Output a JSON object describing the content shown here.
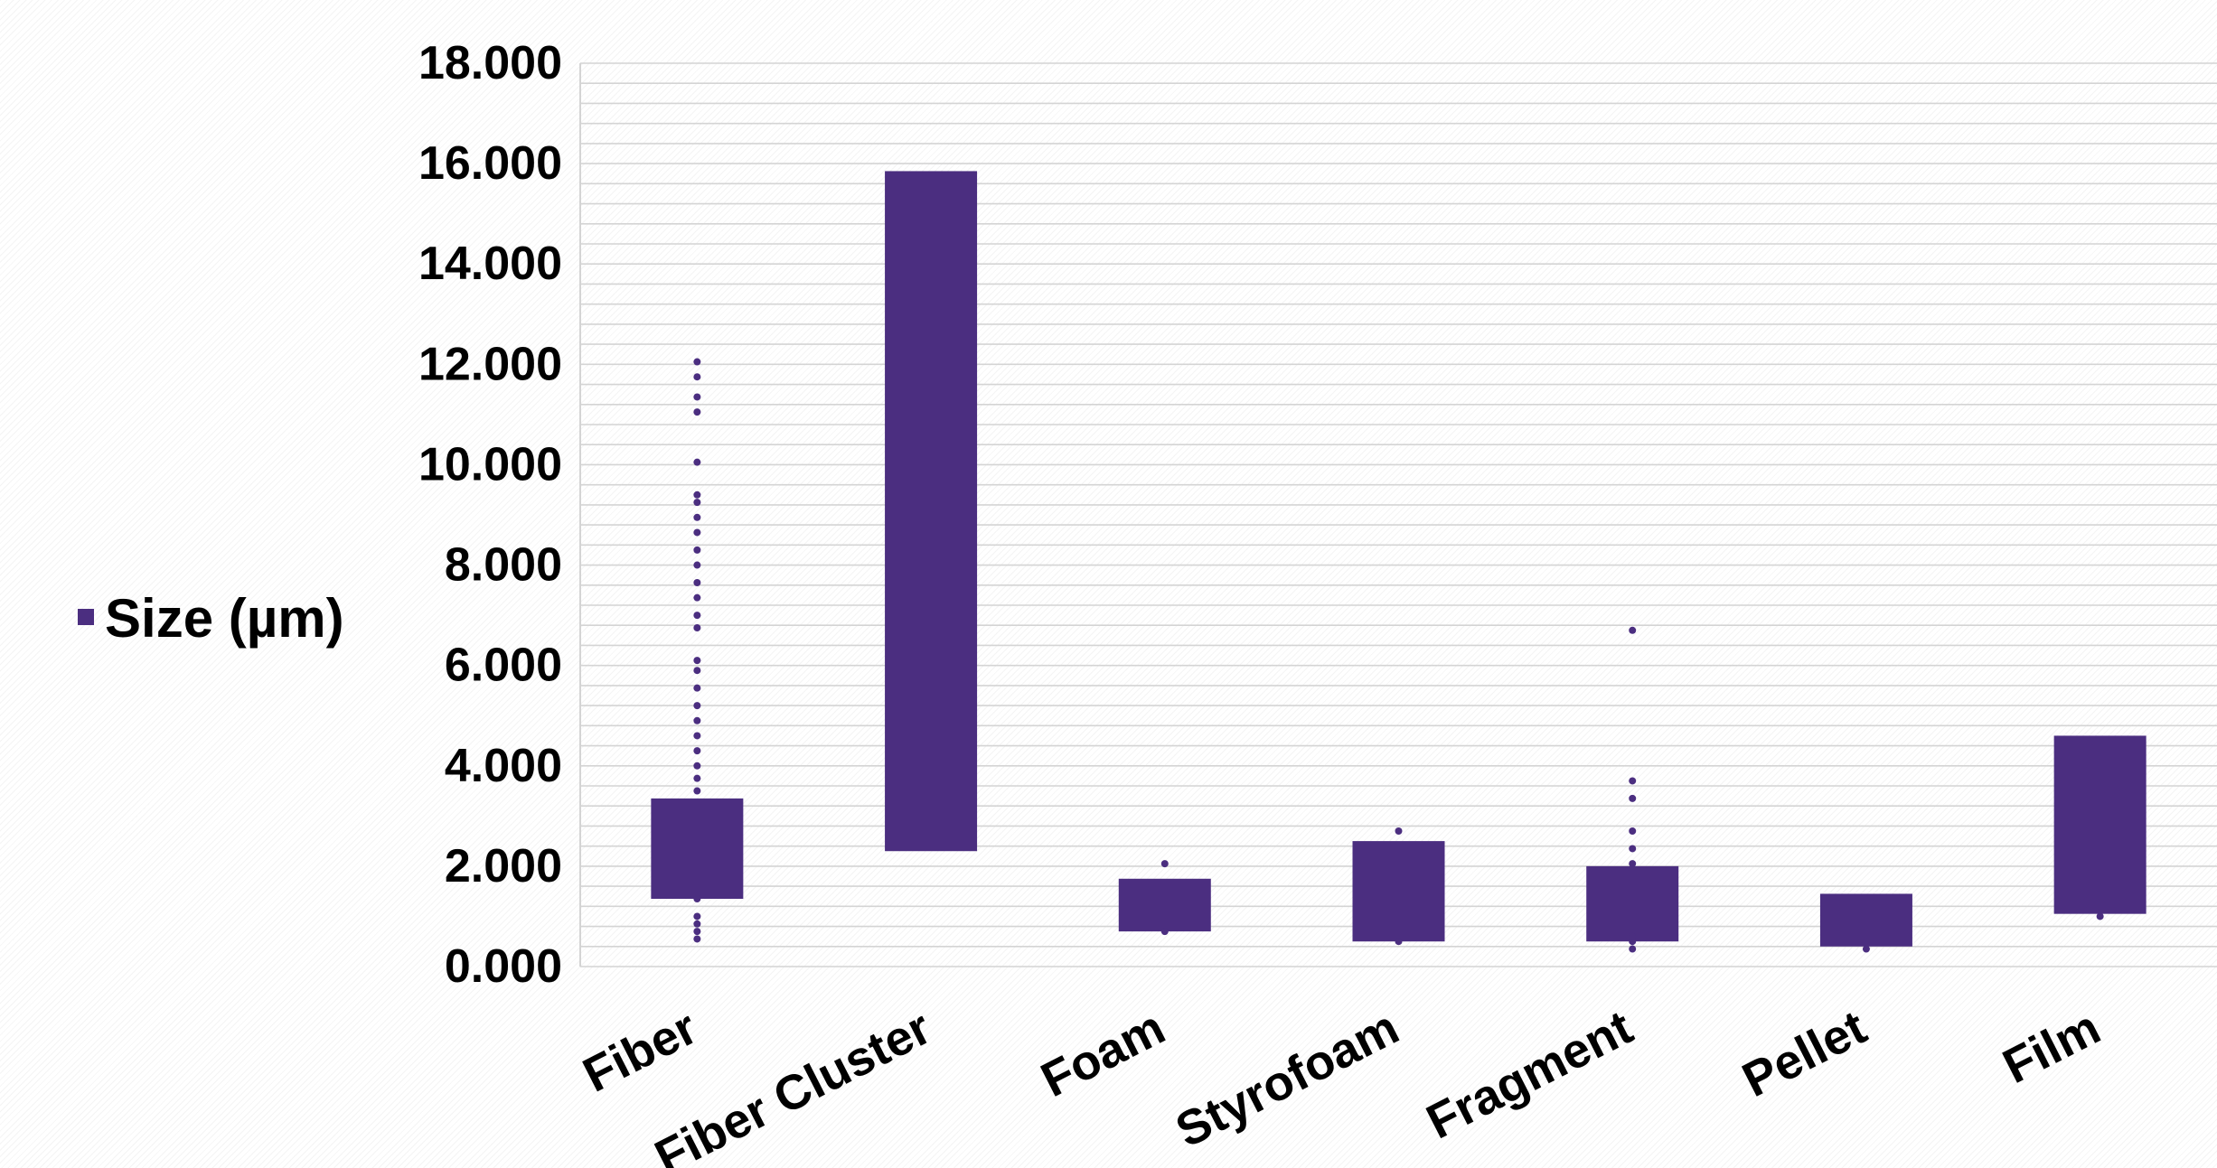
{
  "chart_data": {
    "type": "box",
    "title": "",
    "xlabel": "",
    "ylabel": "",
    "ylim": [
      0,
      18
    ],
    "yticks": [
      "0.000",
      "2.000",
      "4.000",
      "6.000",
      "8.000",
      "10.000",
      "12.000",
      "14.000",
      "16.000",
      "18.000"
    ],
    "grid": true,
    "legend_position": "left",
    "categories": [
      "Fiber",
      "Fiber Cluster",
      "Foam",
      "Styrofoam",
      "Fragment",
      "Pellet",
      "Film"
    ],
    "series": [
      {
        "name": "Size (µm)",
        "color": "#4b2e80",
        "boxes": [
          {
            "category": "Fiber",
            "low": 1.35,
            "high": 3.35,
            "points": [
              0.55,
              0.7,
              0.85,
              1.0,
              1.35,
              3.5,
              3.75,
              4.0,
              4.3,
              4.6,
              4.9,
              5.2,
              5.55,
              5.9,
              6.1,
              6.75,
              7.0,
              7.35,
              7.65,
              8.0,
              8.3,
              8.65,
              8.95,
              9.25,
              9.4,
              10.05,
              11.05,
              11.35,
              11.75,
              12.05
            ]
          },
          {
            "category": "Fiber Cluster",
            "low": 2.3,
            "high": 15.85,
            "points": []
          },
          {
            "category": "Foam",
            "low": 0.7,
            "high": 1.75,
            "points": [
              0.7,
              2.05
            ]
          },
          {
            "category": "Styrofoam",
            "low": 0.5,
            "high": 2.5,
            "points": [
              0.5,
              2.7
            ]
          },
          {
            "category": "Fragment",
            "low": 0.5,
            "high": 2.0,
            "points": [
              0.35,
              0.5,
              0.6,
              2.05,
              2.35,
              2.7,
              3.35,
              3.7,
              6.7
            ]
          },
          {
            "category": "Pellet",
            "low": 0.4,
            "high": 1.45,
            "points": [
              0.35
            ]
          },
          {
            "category": "Film",
            "low": 1.05,
            "high": 4.6,
            "points": [
              1.0
            ]
          }
        ]
      }
    ]
  }
}
